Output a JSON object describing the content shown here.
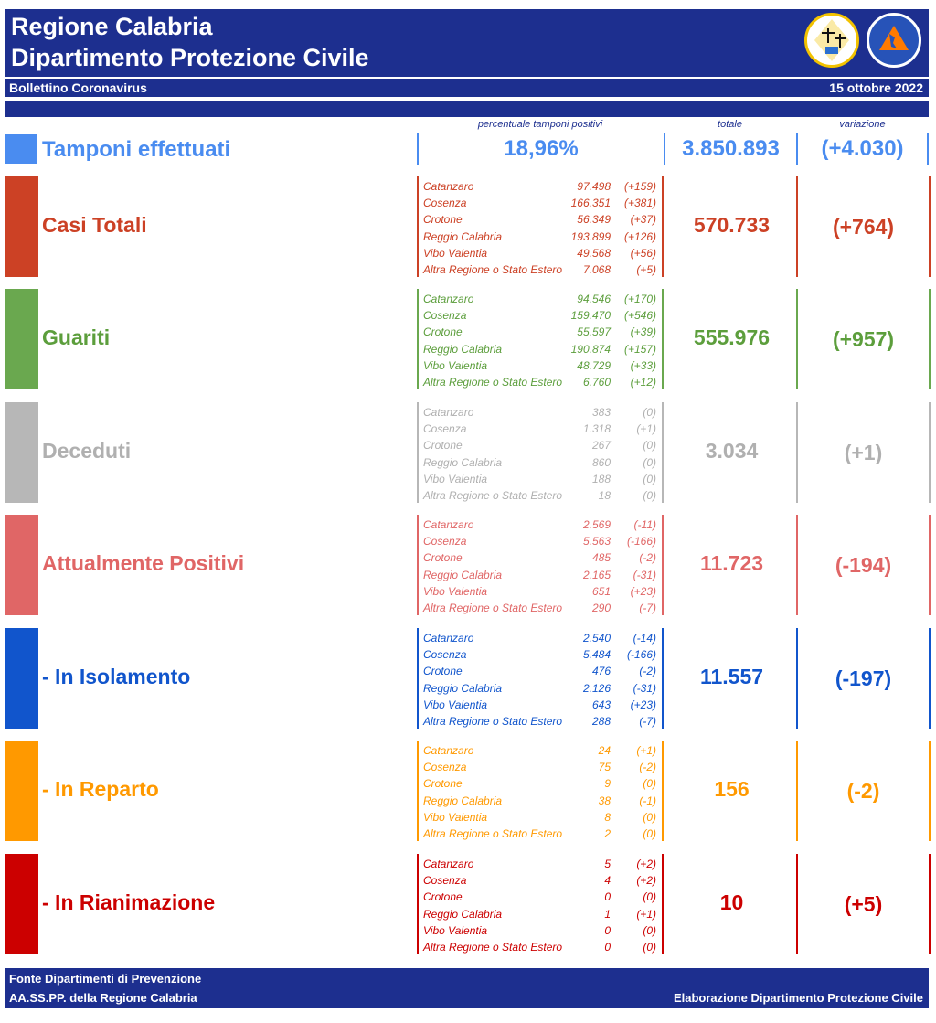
{
  "header": {
    "title1": "Regione Calabria",
    "title2": "Dipartimento Protezione Civile",
    "subtitle": "Bollettino Coronavirus",
    "date": "15 ottobre 2022",
    "logo1_text": "✚ ✚",
    "logo2_text": "PROTEZIONE CIVILE · Regione Calabria"
  },
  "columns": {
    "perc": "percentuale tamponi positivi",
    "totale": "totale",
    "variazione": "variazione"
  },
  "tamponi": {
    "label": "Tamponi effettuati",
    "perc": "18,96%",
    "totale": "3.850.893",
    "variazione": "(+4.030)",
    "color": "#4a8cf0"
  },
  "sections": [
    {
      "label": "Casi Totali",
      "color": "#cc4125",
      "text_color": "#cc4125",
      "totale": "570.733",
      "variazione": "(+764)",
      "rows": [
        {
          "name": "Catanzaro",
          "value": "97.498",
          "delta": "(+159)"
        },
        {
          "name": "Cosenza",
          "value": "166.351",
          "delta": "(+381)"
        },
        {
          "name": "Crotone",
          "value": "56.349",
          "delta": "(+37)"
        },
        {
          "name": "Reggio Calabria",
          "value": "193.899",
          "delta": "(+126)"
        },
        {
          "name": "Vibo Valentia",
          "value": "49.568",
          "delta": "(+56)"
        },
        {
          "name": "Altra Regione o Stato Estero",
          "value": "7.068",
          "delta": "(+5)"
        }
      ]
    },
    {
      "label": "Guariti",
      "color": "#6aa84f",
      "text_color": "#5c9e3c",
      "totale": "555.976",
      "variazione": "(+957)",
      "rows": [
        {
          "name": "Catanzaro",
          "value": "94.546",
          "delta": "(+170)"
        },
        {
          "name": "Cosenza",
          "value": "159.470",
          "delta": "(+546)"
        },
        {
          "name": "Crotone",
          "value": "55.597",
          "delta": "(+39)"
        },
        {
          "name": "Reggio Calabria",
          "value": "190.874",
          "delta": "(+157)"
        },
        {
          "name": "Vibo Valentia",
          "value": "48.729",
          "delta": "(+33)"
        },
        {
          "name": "Altra Regione o Stato Estero",
          "value": "6.760",
          "delta": "(+12)"
        }
      ]
    },
    {
      "label": "Deceduti",
      "color": "#b7b7b7",
      "text_color": "#b0b0b0",
      "totale": "3.034",
      "variazione": "(+1)",
      "rows": [
        {
          "name": "Catanzaro",
          "value": "383",
          "delta": "(0)"
        },
        {
          "name": "Cosenza",
          "value": "1.318",
          "delta": "(+1)"
        },
        {
          "name": "Crotone",
          "value": "267",
          "delta": "(0)"
        },
        {
          "name": "Reggio Calabria",
          "value": "860",
          "delta": "(0)"
        },
        {
          "name": "Vibo Valentia",
          "value": "188",
          "delta": "(0)"
        },
        {
          "name": "Altra Regione o Stato Estero",
          "value": "18",
          "delta": "(0)"
        }
      ]
    },
    {
      "label": "Attualmente Positivi",
      "color": "#e06666",
      "text_color": "#e06666",
      "totale": "11.723",
      "variazione": "(-194)",
      "rows": [
        {
          "name": "Catanzaro",
          "value": "2.569",
          "delta": "(-11)"
        },
        {
          "name": "Cosenza",
          "value": "5.563",
          "delta": "(-166)"
        },
        {
          "name": "Crotone",
          "value": "485",
          "delta": "(-2)"
        },
        {
          "name": "Reggio Calabria",
          "value": "2.165",
          "delta": "(-31)"
        },
        {
          "name": "Vibo Valentia",
          "value": "651",
          "delta": "(+23)"
        },
        {
          "name": "Altra Regione o Stato Estero",
          "value": "290",
          "delta": "(-7)"
        }
      ]
    },
    {
      "label": " - In Isolamento",
      "color": "#1155cc",
      "text_color": "#1155cc",
      "totale": "11.557",
      "variazione": "(-197)",
      "rows": [
        {
          "name": "Catanzaro",
          "value": "2.540",
          "delta": "(-14)"
        },
        {
          "name": "Cosenza",
          "value": "5.484",
          "delta": "(-166)"
        },
        {
          "name": "Crotone",
          "value": "476",
          "delta": "(-2)"
        },
        {
          "name": "Reggio Calabria",
          "value": "2.126",
          "delta": "(-31)"
        },
        {
          "name": "Vibo Valentia",
          "value": "643",
          "delta": "(+23)"
        },
        {
          "name": "Altra Regione o Stato Estero",
          "value": "288",
          "delta": "(-7)"
        }
      ]
    },
    {
      "label": " - In Reparto",
      "color": "#ff9900",
      "text_color": "#ff9900",
      "totale": "156",
      "variazione": "(-2)",
      "rows": [
        {
          "name": "Catanzaro",
          "value": "24",
          "delta": "(+1)"
        },
        {
          "name": "Cosenza",
          "value": "75",
          "delta": "(-2)"
        },
        {
          "name": "Crotone",
          "value": "9",
          "delta": "(0)"
        },
        {
          "name": "Reggio Calabria",
          "value": "38",
          "delta": "(-1)"
        },
        {
          "name": "Vibo Valentia",
          "value": "8",
          "delta": "(0)"
        },
        {
          "name": "Altra Regione o Stato Estero",
          "value": "2",
          "delta": "(0)"
        }
      ]
    },
    {
      "label": " - In Rianimazione",
      "color": "#cc0000",
      "text_color": "#cc0000",
      "totale": "10",
      "variazione": "(+5)",
      "rows": [
        {
          "name": "Catanzaro",
          "value": "5",
          "delta": "(+2)"
        },
        {
          "name": "Cosenza",
          "value": "4",
          "delta": "(+2)"
        },
        {
          "name": "Crotone",
          "value": "0",
          "delta": "(0)"
        },
        {
          "name": "Reggio Calabria",
          "value": "1",
          "delta": "(+1)"
        },
        {
          "name": "Vibo Valentia",
          "value": "0",
          "delta": "(0)"
        },
        {
          "name": "Altra Regione o Stato Estero",
          "value": "0",
          "delta": "(0)"
        }
      ]
    }
  ],
  "footer": {
    "line1": "Fonte Dipartimenti di Prevenzione",
    "line2": "AA.SS.PP.  della Regione Calabria",
    "right": "Elaborazione Dipartimento Protezione Civile"
  }
}
